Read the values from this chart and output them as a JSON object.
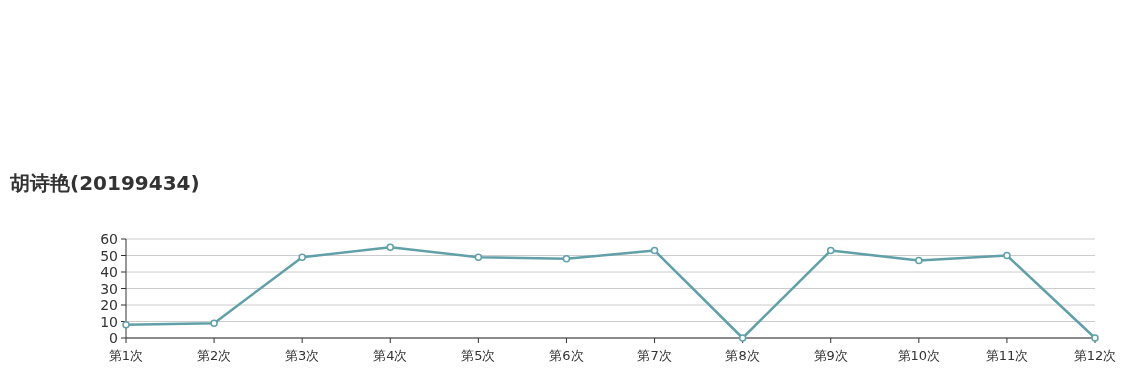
{
  "chart_data": {
    "type": "line",
    "title": "胡诗艳(20199434)",
    "categories": [
      "第1次",
      "第2次",
      "第3次",
      "第4次",
      "第5次",
      "第6次",
      "第7次",
      "第8次",
      "第9次",
      "第10次",
      "第11次",
      "第12次"
    ],
    "series": [
      {
        "color": "#61a0a8",
        "values": [
          8,
          9,
          49,
          55,
          49,
          48,
          53,
          0,
          53,
          47,
          50,
          0
        ]
      }
    ],
    "ylim": [
      0,
      60
    ],
    "yticks": [
      0,
      10,
      20,
      30,
      40,
      50,
      60
    ],
    "grid": "y",
    "marker": "circle",
    "line_style": "solid"
  }
}
